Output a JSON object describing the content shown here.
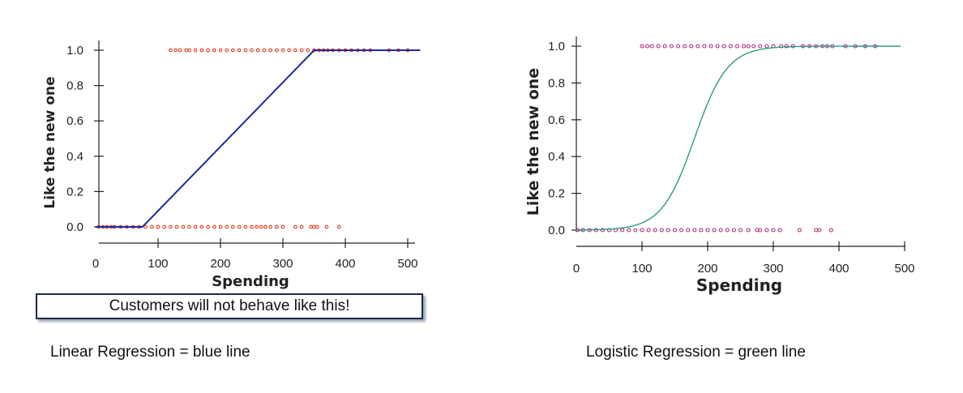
{
  "chart_data": [
    {
      "type": "scatter",
      "xlabel": "Spending",
      "ylabel": "Like the new one",
      "xlim": [
        0,
        520
      ],
      "ylim": [
        0,
        1.0
      ],
      "x_ticks": [
        "0",
        "100",
        "200",
        "300",
        "400",
        "500"
      ],
      "y_ticks": [
        "0.0",
        "0.2",
        "0.4",
        "0.6",
        "0.8",
        "1.0"
      ],
      "point_color": "#e03a1e",
      "line_color": "#1f2a9c",
      "series": [
        {
          "kind": "points",
          "y": 0,
          "x": [
            5,
            12,
            18,
            25,
            30,
            40,
            50,
            60,
            70,
            80,
            90,
            100,
            110,
            120,
            130,
            140,
            150,
            160,
            170,
            180,
            190,
            200,
            210,
            220,
            230,
            240,
            250,
            258,
            265,
            272,
            280,
            290,
            300,
            320,
            330,
            345,
            350,
            355,
            370,
            390
          ]
        },
        {
          "kind": "points",
          "y": 1,
          "x": [
            120,
            128,
            135,
            145,
            150,
            160,
            170,
            180,
            190,
            200,
            210,
            220,
            230,
            240,
            250,
            260,
            270,
            280,
            290,
            300,
            310,
            320,
            330,
            340,
            350,
            358,
            365,
            372,
            380,
            390,
            400,
            410,
            420,
            430,
            440,
            470,
            485,
            500
          ]
        },
        {
          "kind": "line",
          "x": [
            0,
            75,
            350,
            520
          ],
          "y": [
            0,
            0,
            1,
            1
          ]
        }
      ]
    },
    {
      "type": "scatter",
      "xlabel": "Spending",
      "ylabel": "Like the new one",
      "xlim": [
        0,
        510
      ],
      "ylim": [
        0,
        1.0
      ],
      "x_ticks": [
        "0",
        "100",
        "200",
        "300",
        "400",
        "500"
      ],
      "y_ticks": [
        "0.0",
        "0.2",
        "0.4",
        "0.6",
        "0.8",
        "1.0"
      ],
      "point_color": "#b0286a",
      "line_color": "#2e9a80",
      "series": [
        {
          "kind": "points",
          "y": 0,
          "x": [
            2,
            10,
            20,
            30,
            40,
            50,
            60,
            70,
            80,
            90,
            100,
            110,
            120,
            130,
            140,
            150,
            160,
            170,
            180,
            190,
            200,
            210,
            220,
            230,
            240,
            250,
            262,
            275,
            280,
            290,
            300,
            310,
            340,
            365,
            370,
            388
          ]
        },
        {
          "kind": "points",
          "y": 1,
          "x": [
            100,
            108,
            115,
            125,
            135,
            145,
            155,
            165,
            175,
            185,
            195,
            205,
            215,
            225,
            235,
            245,
            255,
            262,
            270,
            280,
            290,
            300,
            312,
            320,
            330,
            345,
            355,
            365,
            375,
            382,
            390,
            410,
            425,
            440,
            455
          ]
        },
        {
          "kind": "curve",
          "function": "logistic",
          "midpoint": 180,
          "steepness": 0.04,
          "x_range": [
            0,
            495
          ]
        }
      ]
    }
  ],
  "callout": "Customers will not behave like this!",
  "captions": {
    "left": "Linear Regression = blue line",
    "right": "Logistic Regression = green line"
  }
}
